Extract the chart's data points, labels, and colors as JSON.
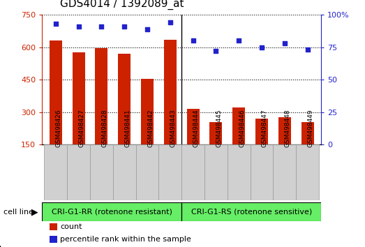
{
  "title": "GDS4014 / 1392089_at",
  "samples": [
    "GSM498426",
    "GSM498427",
    "GSM498428",
    "GSM498441",
    "GSM498442",
    "GSM498443",
    "GSM498444",
    "GSM498445",
    "GSM498446",
    "GSM498447",
    "GSM498448",
    "GSM498449"
  ],
  "counts": [
    630,
    575,
    595,
    570,
    455,
    635,
    315,
    255,
    320,
    270,
    275,
    255
  ],
  "percentile_ranks": [
    93,
    91,
    91,
    91,
    89,
    94,
    80,
    72,
    80,
    75,
    78,
    73
  ],
  "group1_label": "CRI-G1-RR (rotenone resistant)",
  "group2_label": "CRI-G1-RS (rotenone sensitive)",
  "group1_count": 6,
  "group2_count": 6,
  "bar_color": "#cc2200",
  "dot_color": "#2222cc",
  "green_bg": "#66ee66",
  "gray_bg": "#d0d0d0",
  "plot_bg": "#ffffff",
  "ylim_left": [
    150,
    750
  ],
  "ylim_right": [
    0,
    100
  ],
  "yticks_left": [
    150,
    300,
    450,
    600,
    750
  ],
  "yticks_right": [
    0,
    25,
    50,
    75,
    100
  ],
  "cell_line_label": "cell line",
  "legend_count_label": "count",
  "legend_percentile_label": "percentile rank within the sample",
  "bar_width": 0.55,
  "title_fontsize": 11,
  "tick_fontsize": 8,
  "label_fontsize": 8,
  "group_label_fontsize": 8
}
